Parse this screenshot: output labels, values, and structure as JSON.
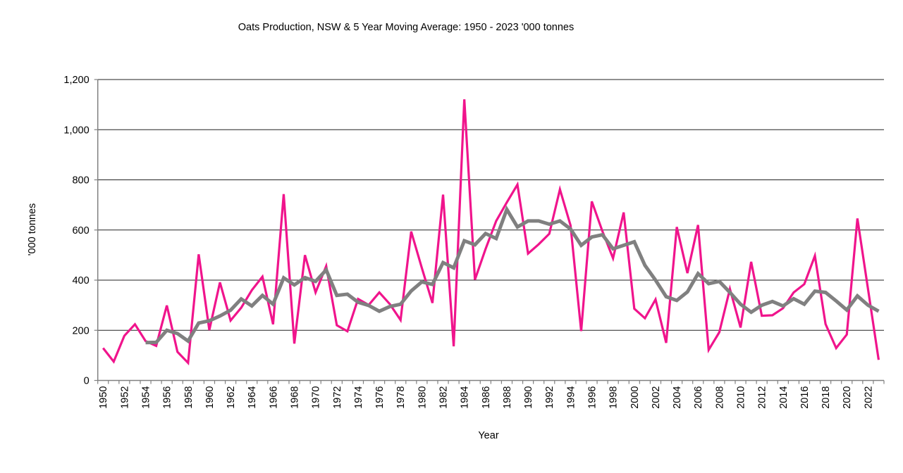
{
  "chart_data": {
    "type": "line",
    "title": "Oats Production, NSW & 5 Year Moving Average: 1950 - 2023 '000 tonnes",
    "xlabel": "Year",
    "ylabel": "'000 tonnes",
    "ylim": [
      0,
      1200
    ],
    "yticks": [
      0,
      200,
      400,
      600,
      800,
      1000,
      1200
    ],
    "ytick_labels": [
      "0",
      "200",
      "400",
      "600",
      "800",
      "1,000",
      "1,200"
    ],
    "xtick_label_step": 2,
    "grid": "horizontal",
    "legend": "none",
    "x": [
      1950,
      1951,
      1952,
      1953,
      1954,
      1955,
      1956,
      1957,
      1958,
      1959,
      1960,
      1961,
      1962,
      1963,
      1964,
      1965,
      1966,
      1967,
      1968,
      1969,
      1970,
      1971,
      1972,
      1973,
      1974,
      1975,
      1976,
      1977,
      1978,
      1979,
      1980,
      1981,
      1982,
      1983,
      1984,
      1985,
      1986,
      1987,
      1988,
      1989,
      1990,
      1991,
      1992,
      1993,
      1994,
      1995,
      1996,
      1997,
      1998,
      1999,
      2000,
      2001,
      2002,
      2003,
      2004,
      2005,
      2006,
      2007,
      2008,
      2009,
      2010,
      2011,
      2012,
      2013,
      2014,
      2015,
      2016,
      2017,
      2018,
      2019,
      2020,
      2021,
      2022,
      2023
    ],
    "series": [
      {
        "name": "Oats Production, NSW",
        "color": "#F0148C",
        "values": [
          129,
          75,
          178,
          224,
          157,
          138,
          299,
          114,
          70,
          503,
          201,
          391,
          239,
          290,
          360,
          414,
          224,
          743,
          147,
          500,
          351,
          456,
          220,
          196,
          325,
          301,
          351,
          304,
          241,
          594,
          449,
          309,
          741,
          136,
          1121,
          402,
          524,
          636,
          710,
          781,
          506,
          543,
          585,
          762,
          618,
          197,
          714,
          595,
          487,
          670,
          286,
          248,
          323,
          150,
          612,
          428,
          620,
          122,
          192,
          365,
          211,
          473,
          258,
          260,
          288,
          351,
          384,
          497,
          225,
          129,
          183,
          646,
          364,
          82
        ]
      },
      {
        "name": "5 Year Moving Average",
        "color": "#808080",
        "values": [
          null,
          null,
          null,
          null,
          151,
          152,
          200,
          187,
          157,
          229,
          238,
          257,
          280,
          325,
          297,
          339,
          304,
          409,
          381,
          410,
          395,
          441,
          339,
          344,
          312,
          299,
          276,
          295,
          304,
          357,
          393,
          383,
          470,
          449,
          557,
          541,
          586,
          566,
          682,
          612,
          636,
          636,
          623,
          636,
          604,
          539,
          572,
          581,
          525,
          539,
          553,
          459,
          400,
          334,
          319,
          353,
          426,
          386,
          395,
          351,
          304,
          272,
          300,
          315,
          297,
          326,
          304,
          356,
          351,
          317,
          281,
          337,
          300,
          276
        ]
      }
    ]
  }
}
